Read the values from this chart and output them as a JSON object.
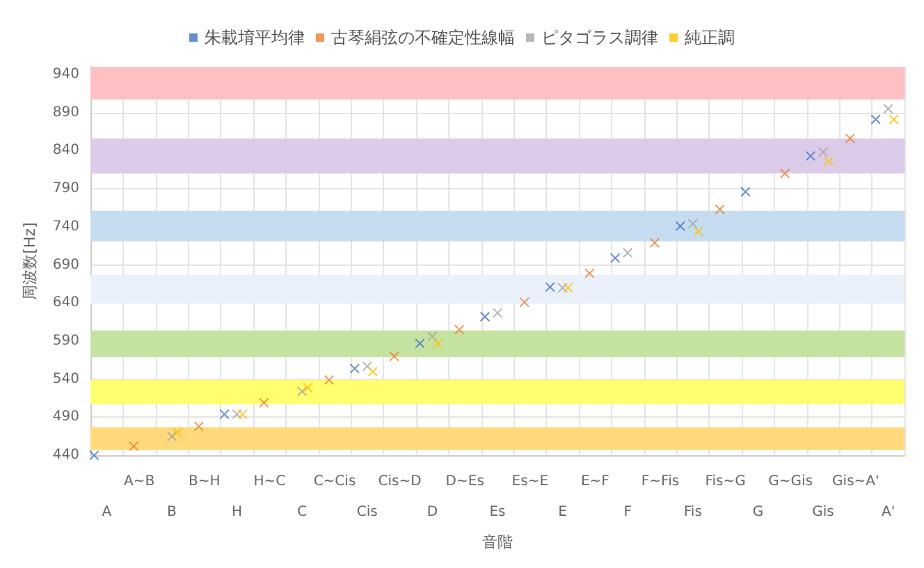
{
  "chart_data": {
    "type": "scatter",
    "xlabel": "音階",
    "ylabel": "周波数[Hz]",
    "categories": [
      "A",
      "A~B",
      "B",
      "B~H",
      "H",
      "H~C",
      "C",
      "C~Cis",
      "Cis",
      "Cis~D",
      "D",
      "D~Es",
      "Es",
      "Es~E",
      "E",
      "E~F",
      "F",
      "F~Fis",
      "Fis",
      "Fis~G",
      "G",
      "G~Gis",
      "Gis",
      "Gis~A'",
      "A'"
    ],
    "series": [
      {
        "name": "朱載堉平均律",
        "color": "#4472c4",
        "values": [
          440,
          null,
          null,
          null,
          494,
          null,
          null,
          null,
          554,
          null,
          587,
          null,
          622,
          null,
          661,
          null,
          699,
          null,
          741,
          null,
          786,
          null,
          833,
          null,
          881
        ]
      },
      {
        "name": "古琴絹弦の不確定性線幅",
        "color": "#ed7d31",
        "values": [
          null,
          452,
          null,
          478,
          null,
          509,
          null,
          539,
          null,
          570,
          null,
          605,
          null,
          641,
          null,
          679,
          null,
          719,
          null,
          763,
          null,
          810,
          null,
          856,
          null
        ]
      },
      {
        "name": "ピタゴラス調律",
        "color": "#a5a5a5",
        "values": [
          null,
          null,
          465,
          null,
          494,
          null,
          524,
          null,
          557,
          null,
          596,
          null,
          627,
          null,
          660,
          null,
          706,
          null,
          744,
          null,
          null,
          null,
          838,
          null,
          895
        ]
      },
      {
        "name": "純正調",
        "color": "#ffc000",
        "values": [
          null,
          null,
          470,
          null,
          494,
          null,
          529,
          null,
          550,
          null,
          587,
          null,
          null,
          null,
          660,
          null,
          null,
          null,
          734,
          null,
          null,
          null,
          826,
          null,
          881
        ]
      }
    ],
    "ylim": [
      440,
      950
    ],
    "yticks": [
      440,
      490,
      540,
      590,
      640,
      690,
      740,
      790,
      840,
      890,
      940
    ],
    "grid": true,
    "legend": "top",
    "marker": "cross",
    "bands": [
      {
        "axis": "y",
        "from": 907,
        "to": 950,
        "color": "#ffc0c4"
      },
      {
        "axis": "y",
        "from": 810,
        "to": 856,
        "color": "#dccbe8"
      },
      {
        "axis": "y",
        "from": 721,
        "to": 761,
        "color": "#c6dcf0"
      },
      {
        "axis": "y",
        "from": 639,
        "to": 677,
        "color": "#eaf1fa"
      },
      {
        "axis": "y",
        "from": 569,
        "to": 604,
        "color": "#c4e3a0"
      },
      {
        "axis": "y",
        "from": 507,
        "to": 539,
        "color": "#ffff70"
      },
      {
        "axis": "y",
        "from": 447,
        "to": 477,
        "color": "#ffd97a"
      }
    ]
  }
}
